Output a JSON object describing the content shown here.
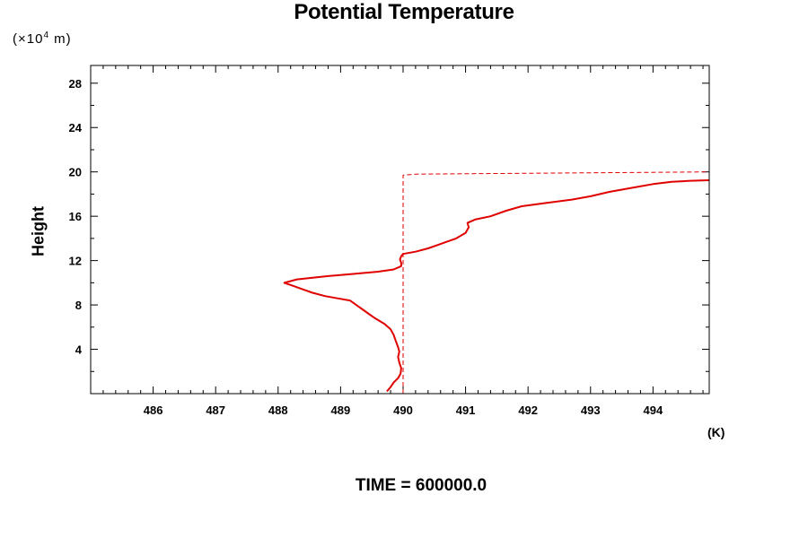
{
  "chart_data": {
    "type": "line",
    "title": "Potential Temperature",
    "ylabel": "Height",
    "y_unit_prefix": "(×10",
    "y_unit_exp": "4",
    "y_unit_suffix": " m)",
    "x_unit": "(K)",
    "footer": "TIME = 600000.0",
    "xlim": [
      485.0,
      494.9
    ],
    "ylim": [
      0.0,
      29.6
    ],
    "x_ticks": [
      486,
      487,
      488,
      489,
      490,
      491,
      492,
      493,
      494
    ],
    "y_ticks": [
      4,
      8,
      12,
      16,
      20,
      24,
      28
    ],
    "grid": false,
    "series": [
      {
        "style": "solid",
        "color": "#e00000",
        "points": [
          [
            489.74,
            0.2
          ],
          [
            489.8,
            0.6
          ],
          [
            489.85,
            1.0
          ],
          [
            489.92,
            1.4
          ],
          [
            489.96,
            1.8
          ],
          [
            489.97,
            2.3
          ],
          [
            489.94,
            2.8
          ],
          [
            489.92,
            3.3
          ],
          [
            489.94,
            3.8
          ],
          [
            489.92,
            4.2
          ],
          [
            489.88,
            4.8
          ],
          [
            489.85,
            5.3
          ],
          [
            489.8,
            5.8
          ],
          [
            489.7,
            6.3
          ],
          [
            489.55,
            6.8
          ],
          [
            489.45,
            7.2
          ],
          [
            489.35,
            7.6
          ],
          [
            489.25,
            8.0
          ],
          [
            489.15,
            8.4
          ],
          [
            488.95,
            8.6
          ],
          [
            488.75,
            8.8
          ],
          [
            488.55,
            9.1
          ],
          [
            488.4,
            9.4
          ],
          [
            488.25,
            9.7
          ],
          [
            488.1,
            10.0
          ],
          [
            488.3,
            10.3
          ],
          [
            488.8,
            10.6
          ],
          [
            489.2,
            10.8
          ],
          [
            489.6,
            11.0
          ],
          [
            489.85,
            11.2
          ],
          [
            489.97,
            11.5
          ],
          [
            489.97,
            11.8
          ],
          [
            489.95,
            12.1
          ],
          [
            489.97,
            12.4
          ],
          [
            490.0,
            12.6
          ],
          [
            490.2,
            12.8
          ],
          [
            490.4,
            13.1
          ],
          [
            490.55,
            13.4
          ],
          [
            490.7,
            13.7
          ],
          [
            490.85,
            14.0
          ],
          [
            491.0,
            14.5
          ],
          [
            491.05,
            15.0
          ],
          [
            491.03,
            15.4
          ],
          [
            491.15,
            15.7
          ],
          [
            491.4,
            16.0
          ],
          [
            491.65,
            16.5
          ],
          [
            491.9,
            16.9
          ],
          [
            492.3,
            17.2
          ],
          [
            492.7,
            17.5
          ],
          [
            493.0,
            17.8
          ],
          [
            493.3,
            18.2
          ],
          [
            493.7,
            18.6
          ],
          [
            494.0,
            18.9
          ],
          [
            494.3,
            19.1
          ],
          [
            494.6,
            19.2
          ],
          [
            494.9,
            19.25
          ]
        ]
      },
      {
        "style": "dashed",
        "color": "#e00000",
        "points": [
          [
            490.0,
            0.0
          ],
          [
            490.0,
            19.7
          ],
          [
            490.2,
            19.8
          ],
          [
            494.9,
            20.0
          ]
        ]
      }
    ]
  }
}
